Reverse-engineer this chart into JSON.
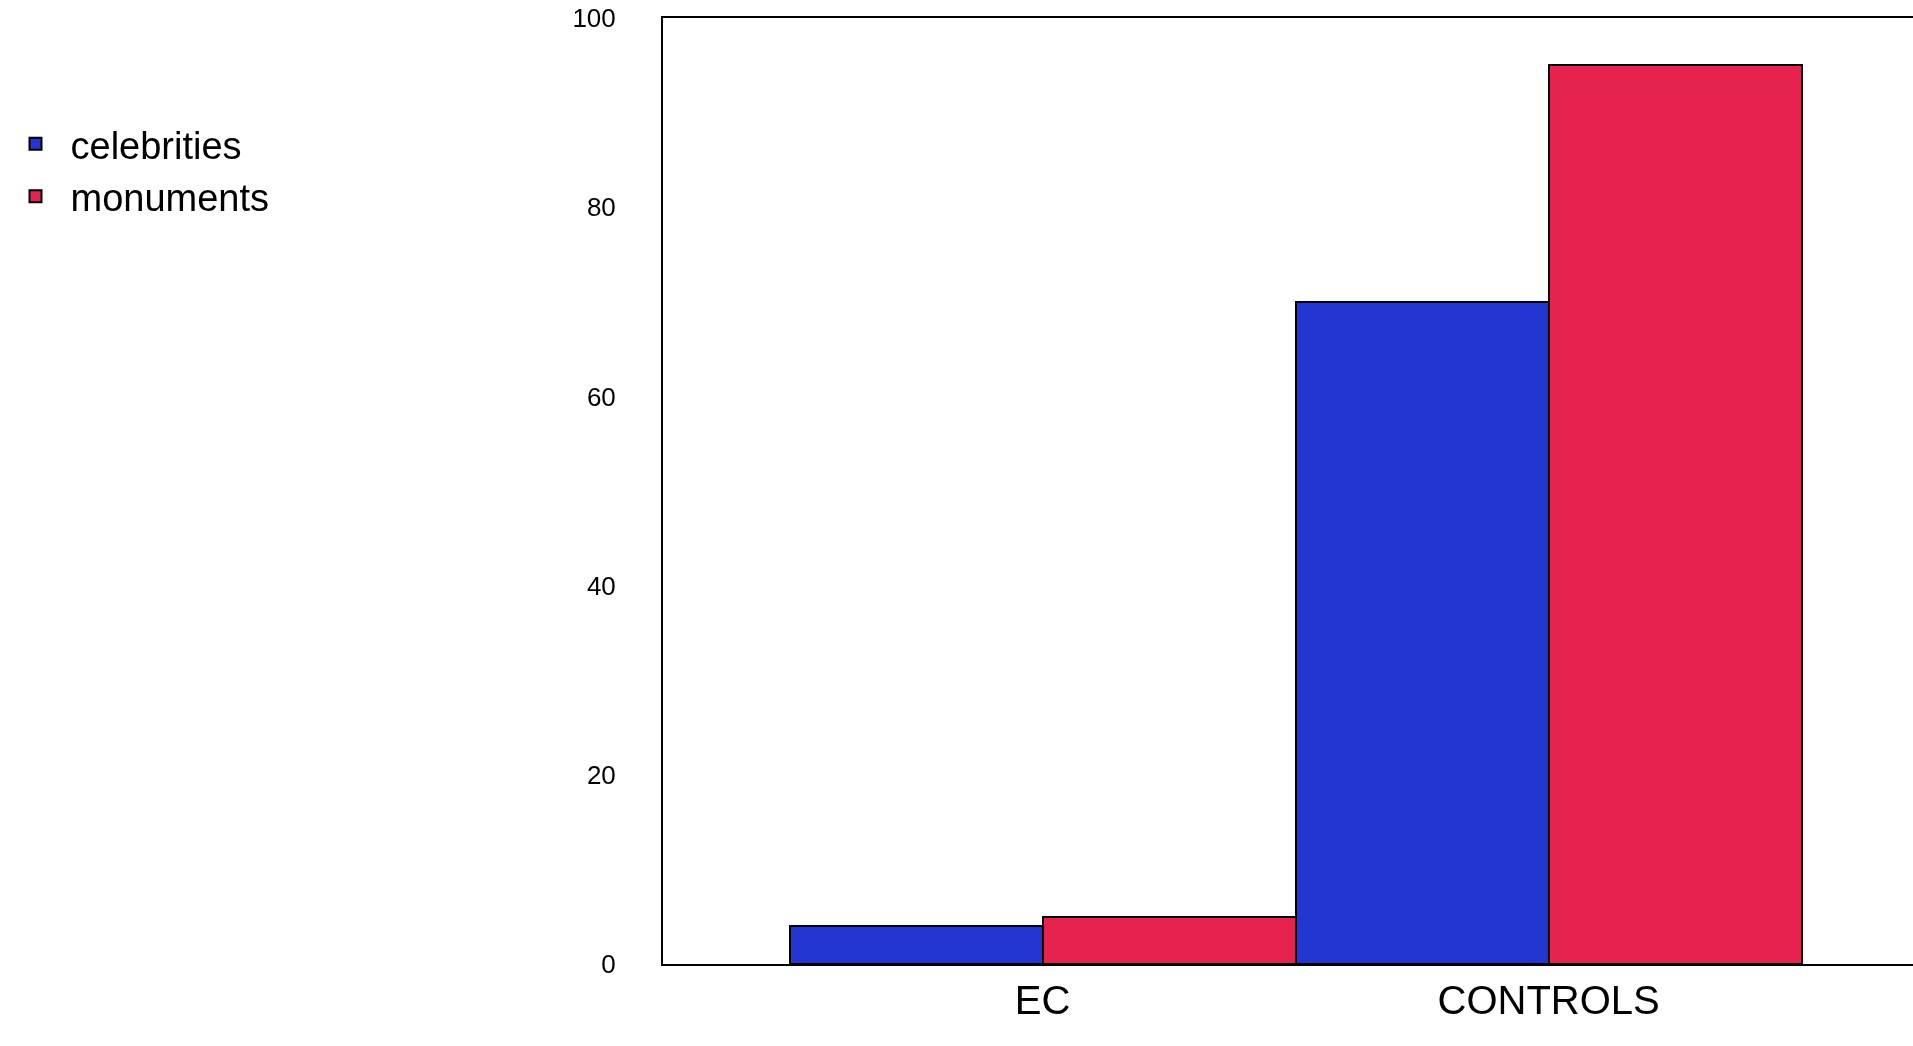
{
  "chart_data": {
    "type": "bar",
    "categories": [
      "EC",
      "CONTROLS"
    ],
    "series": [
      {
        "name": "celebrities",
        "color": "#2236d2",
        "values": [
          4,
          70
        ]
      },
      {
        "name": "monuments",
        "color": "#e6224e",
        "values": [
          5,
          95
        ]
      }
    ],
    "ylim": [
      0,
      100
    ],
    "yticks": [
      0,
      20,
      40,
      60,
      80,
      100
    ],
    "grid": false,
    "legend": "top left"
  }
}
